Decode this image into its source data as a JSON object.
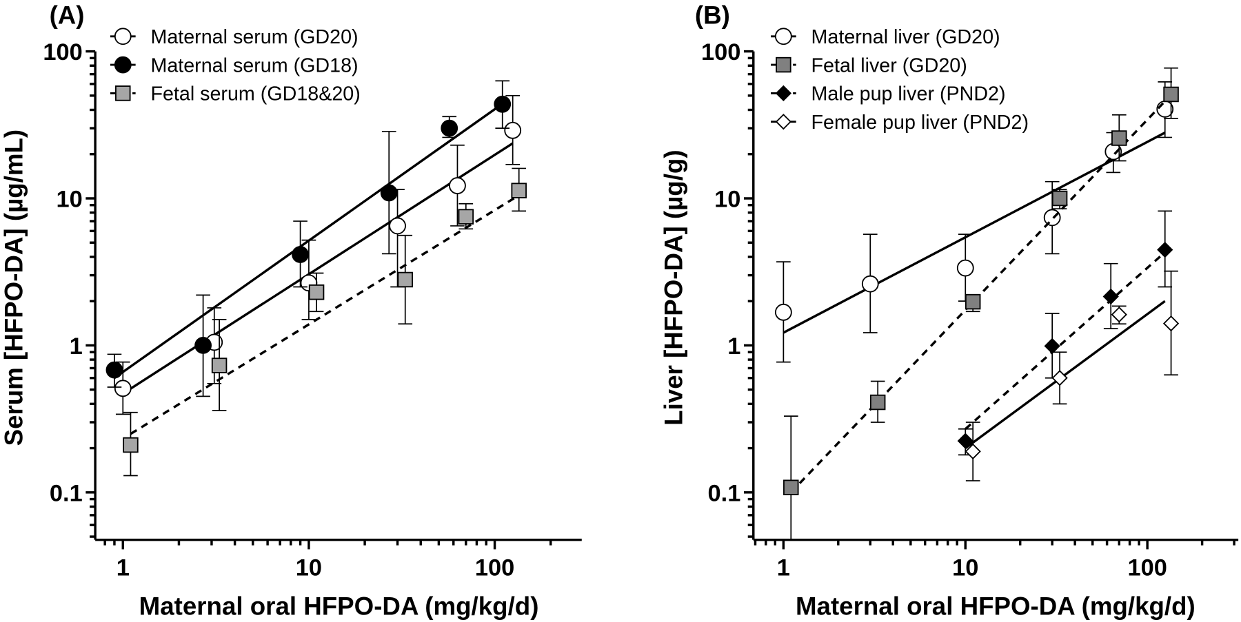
{
  "chart_data": [
    {
      "type": "scatter",
      "panel_label": "(A)",
      "xlabel": "Maternal oral HFPO-DA (mg/kg/d)",
      "ylabel": "Serum [HFPO-DA] (µg/mL)",
      "xscale": "log",
      "yscale": "log",
      "xlim": [
        0.7,
        300
      ],
      "ylim": [
        0.05,
        100
      ],
      "xticks": [
        "1",
        "10",
        "100"
      ],
      "xtick_values": [
        1,
        10,
        100
      ],
      "yticks": [
        "100",
        "10",
        "1",
        "0.1"
      ],
      "ytick_values": [
        100,
        10,
        1,
        0.1
      ],
      "legend_position": "top-left",
      "series": [
        {
          "name": "Maternal serum (GD20)",
          "marker": "open-circle",
          "line": "solid",
          "color": "#000000",
          "fill": "#ffffff",
          "x": [
            1,
            3.1,
            10,
            30,
            63,
            125
          ],
          "y": [
            0.51,
            1.05,
            2.66,
            6.5,
            12.2,
            29
          ],
          "err_low": [
            0.34,
            0.55,
            1.5,
            2.5,
            6.5,
            17
          ],
          "err_high": [
            0.77,
            1.8,
            5.2,
            11.5,
            23,
            50
          ],
          "fit": [
            [
              1,
              0.47
            ],
            [
              125,
              23.7
            ]
          ]
        },
        {
          "name": "Maternal serum (GD18)",
          "marker": "filled-circle",
          "line": "solid",
          "color": "#000000",
          "fill": "#000000",
          "x": [
            0.9,
            2.7,
            9,
            27,
            57,
            110
          ],
          "y": [
            0.68,
            1.0,
            4.15,
            10.9,
            30,
            43.7
          ],
          "err_low": [
            0.52,
            0.45,
            2.5,
            4.2,
            26,
            30
          ],
          "err_high": [
            0.87,
            2.2,
            7.0,
            28.5,
            36,
            63
          ],
          "fit": [
            [
              0.9,
              0.6
            ],
            [
              110,
              44
            ]
          ]
        },
        {
          "name": "Fetal serum (GD18&20)",
          "marker": "square",
          "line": "dashed",
          "color": "#000000",
          "fill": "#a6a6a6",
          "x": [
            1.1,
            3.3,
            11,
            33,
            70,
            135
          ],
          "y": [
            0.21,
            0.73,
            2.3,
            2.8,
            7.5,
            11.3
          ],
          "err_low": [
            0.13,
            0.36,
            1.7,
            1.4,
            6.2,
            8.2
          ],
          "err_high": [
            0.35,
            1.5,
            3.1,
            5.6,
            9.2,
            16
          ],
          "fit": [
            [
              1.1,
              0.25
            ],
            [
              135,
              10.5
            ]
          ]
        }
      ]
    },
    {
      "type": "scatter",
      "panel_label": "(B)",
      "xlabel": "Maternal oral HFPO-DA (mg/kg/d)",
      "ylabel": "Liver [HFPO-DA] (µg/g)",
      "xscale": "log",
      "yscale": "log",
      "xlim": [
        0.7,
        300
      ],
      "ylim": [
        0.05,
        100
      ],
      "xticks": [
        "1",
        "10",
        "100"
      ],
      "xtick_values": [
        1,
        10,
        100
      ],
      "yticks": [
        "100",
        "10",
        "1",
        "0.1"
      ],
      "ytick_values": [
        100,
        10,
        1,
        0.1
      ],
      "legend_position": "top-left",
      "series": [
        {
          "name": "Maternal liver (GD20)",
          "marker": "open-circle",
          "line": "solid",
          "color": "#000000",
          "fill": "#ffffff",
          "x": [
            1,
            3,
            10,
            30,
            65,
            125
          ],
          "y": [
            1.68,
            2.62,
            3.36,
            7.4,
            20.8,
            40.5
          ],
          "err_low": [
            0.77,
            1.22,
            2.0,
            4.2,
            15,
            26
          ],
          "err_high": [
            3.7,
            5.7,
            5.7,
            13,
            28,
            62
          ],
          "fit": [
            [
              1,
              1.22
            ],
            [
              125,
              28
            ]
          ]
        },
        {
          "name": "Fetal liver (GD20)",
          "marker": "square",
          "line": "dashed",
          "color": "#000000",
          "fill": "#808080",
          "x": [
            1.1,
            3.3,
            11,
            33,
            70,
            135
          ],
          "y": [
            0.108,
            0.41,
            1.98,
            10,
            25.7,
            51
          ],
          "err_low": [
            0.03,
            0.3,
            1.7,
            8.5,
            18,
            35
          ],
          "err_high": [
            0.33,
            0.57,
            2.2,
            11.5,
            37,
            77
          ],
          "fit": [
            [
              1.1,
              0.1
            ],
            [
              140,
              53
            ]
          ]
        },
        {
          "name": "Male pup liver (PND2)",
          "marker": "filled-diamond",
          "line": "dashed",
          "color": "#000000",
          "fill": "#000000",
          "x": [
            10,
            30,
            63,
            125
          ],
          "y": [
            0.224,
            0.99,
            2.15,
            4.47
          ],
          "err_low": [
            0.18,
            0.6,
            1.3,
            2.5
          ],
          "err_high": [
            0.27,
            1.65,
            3.6,
            8.2
          ],
          "fit": [
            [
              10,
              0.27
            ],
            [
              125,
              4.3
            ]
          ]
        },
        {
          "name": "Female pup liver (PND2)",
          "marker": "open-diamond",
          "line": "solid",
          "color": "#000000",
          "fill": "#ffffff",
          "x": [
            11,
            33,
            70,
            135
          ],
          "y": [
            0.19,
            0.6,
            1.62,
            1.41
          ],
          "err_low": [
            0.12,
            0.4,
            1.4,
            0.63
          ],
          "err_high": [
            0.3,
            0.9,
            1.85,
            3.2
          ],
          "fit": [
            [
              10,
              0.2
            ],
            [
              125,
              2.0
            ]
          ]
        }
      ]
    }
  ]
}
